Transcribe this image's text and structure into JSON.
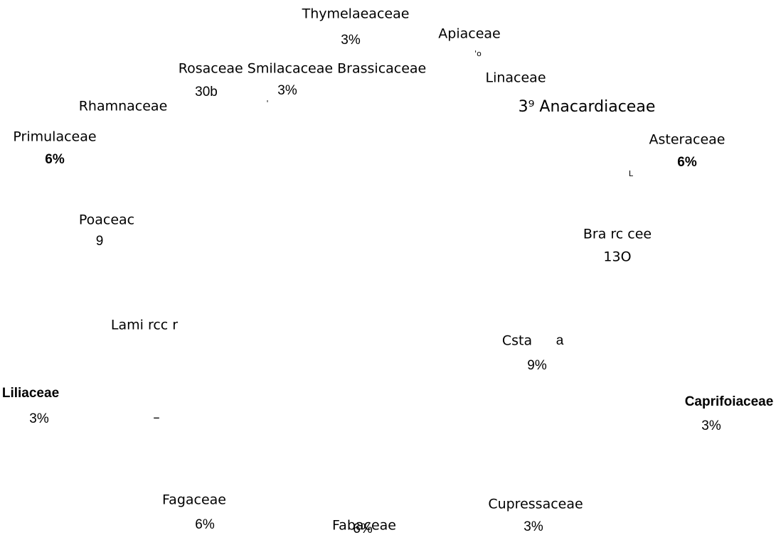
{
  "texts": [
    "Thymelaeaceae",
    "3%",
    "Apiaceae",
    "'o",
    "Rosaceae Smilacaceae Brassicaceae",
    "30b",
    "3%",
    "'",
    "Linaceae",
    "3⁹ Anacardiaceae",
    "Rhamnaceae",
    "Primulaceae",
    "6%",
    "Asteraceae",
    "6%",
    "L",
    "Poaceac",
    "9",
    "Bra rc cee",
    "13O",
    "Lami rcc r",
    "Csta",
    "a",
    "9%",
    "Liliaceae",
    "3%",
    "–",
    "Caprifoiaceae",
    "3%",
    "Fagaceae",
    "6%",
    "Fabaceae",
    "6%",
    "Cupressaceae",
    "3%"
  ]
}
